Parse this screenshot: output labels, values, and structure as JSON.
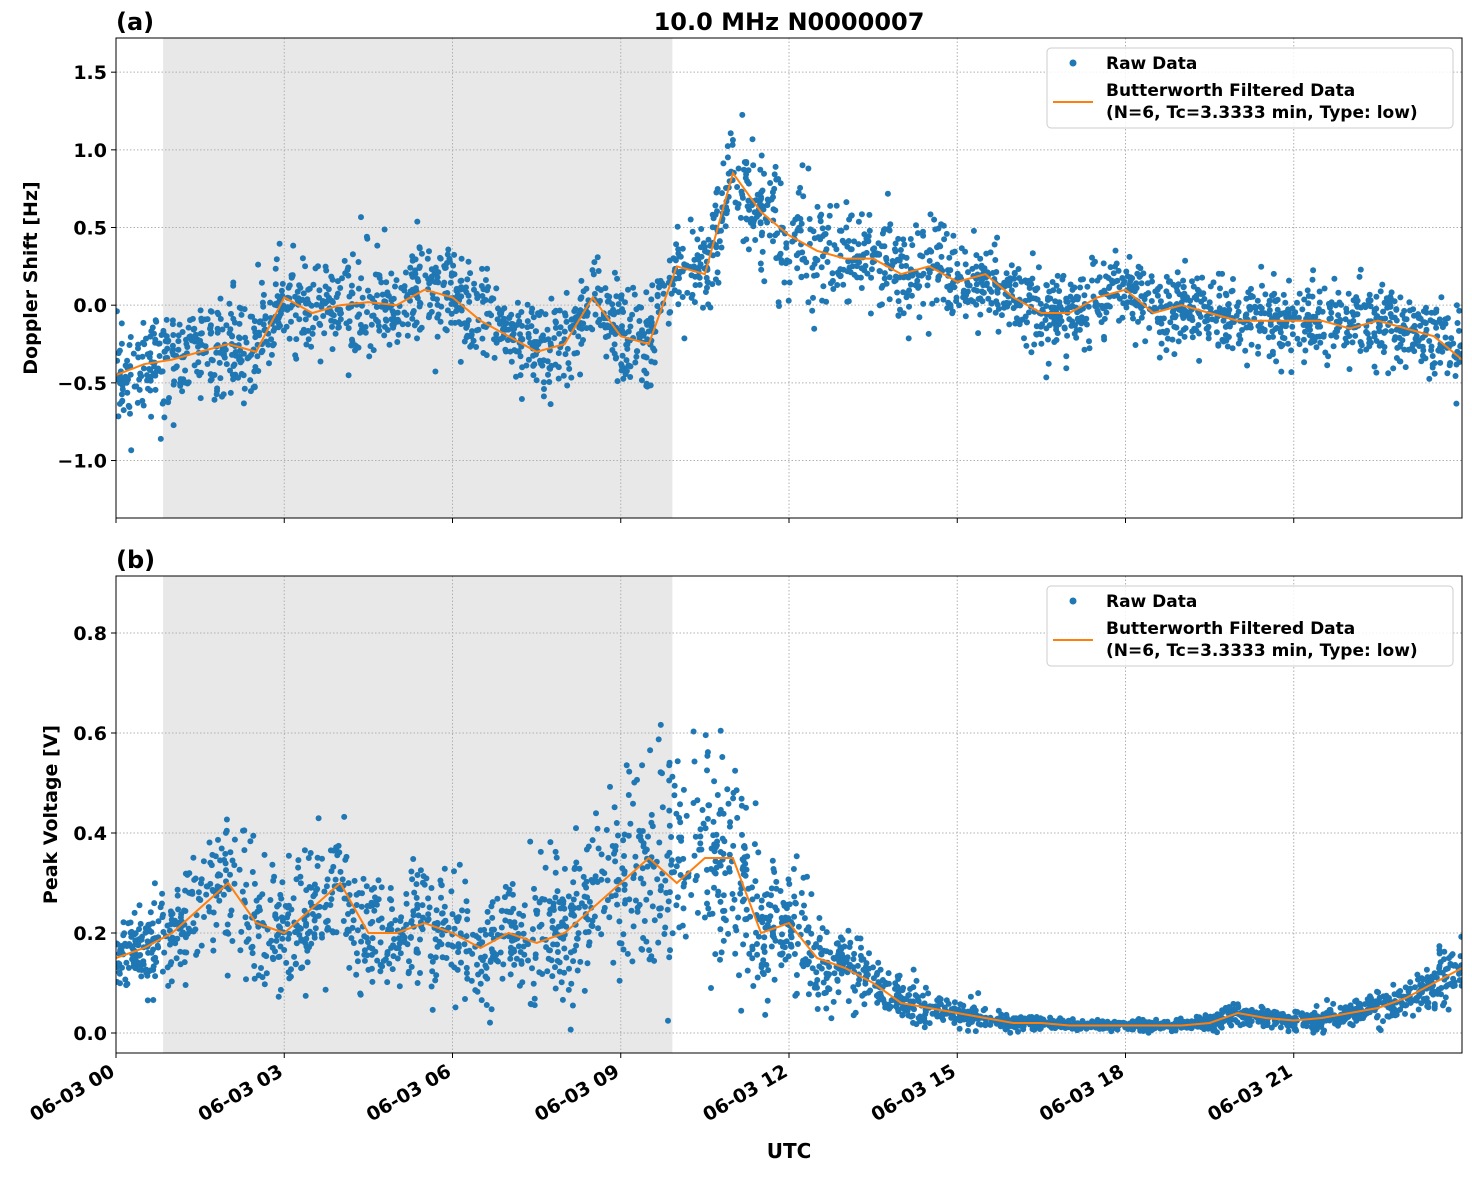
{
  "chart_data": [
    {
      "type": "scatter",
      "panel_label": "(a)",
      "title": "10.0 MHz N0000007",
      "xlabel": "",
      "ylabel": "Doppler Shift [Hz]",
      "xlim_hours": [
        0,
        24
      ],
      "ylim": [
        -1.37,
        1.72
      ],
      "yticks": [
        -1.0,
        -0.5,
        0.0,
        0.5,
        1.0,
        1.5
      ],
      "ytick_labels": [
        "−1.0",
        "−0.5",
        "0.0",
        "0.5",
        "1.0",
        "1.5"
      ],
      "grid": true,
      "legend_position": "top-right",
      "shaded_region_hours": [
        0.84,
        9.92
      ],
      "shaded_color": "#e8e8e8",
      "series": [
        {
          "name": "Raw Data",
          "kind": "scatter",
          "color": "#1f77b4",
          "note_resolution": "hourly envelope half-width around filtered curve",
          "spread": [
            0.3,
            0.3,
            0.35,
            0.35,
            0.35,
            0.35,
            0.3,
            0.3,
            0.3,
            0.3,
            0.3,
            0.35,
            0.4,
            0.3,
            0.3,
            0.25,
            0.25,
            0.25,
            0.25,
            0.25,
            0.25,
            0.25,
            0.25,
            0.25,
            0.3
          ]
        },
        {
          "name": "Butterworth Filtered Data\n(N=6, Tc=3.3333 min, Type: low)",
          "kind": "line",
          "color": "#ff7f0e",
          "x_hours": [
            0,
            0.5,
            1,
            1.5,
            2,
            2.5,
            3,
            3.5,
            4,
            4.5,
            5,
            5.5,
            6,
            6.5,
            7,
            7.5,
            8,
            8.5,
            9,
            9.5,
            10,
            10.5,
            11,
            11.5,
            12,
            12.5,
            13,
            13.5,
            14,
            14.5,
            15,
            15.5,
            16,
            16.5,
            17,
            17.5,
            18,
            18.5,
            19,
            19.5,
            20,
            20.5,
            21,
            21.5,
            22,
            22.5,
            23,
            23.5,
            24
          ],
          "y": [
            -0.45,
            -0.38,
            -0.35,
            -0.3,
            -0.25,
            -0.3,
            0.05,
            -0.05,
            0.0,
            0.02,
            0.0,
            0.1,
            0.05,
            -0.1,
            -0.2,
            -0.3,
            -0.25,
            0.05,
            -0.2,
            -0.25,
            0.25,
            0.2,
            0.85,
            0.6,
            0.45,
            0.35,
            0.3,
            0.3,
            0.2,
            0.25,
            0.15,
            0.2,
            0.05,
            -0.05,
            -0.05,
            0.05,
            0.1,
            -0.05,
            0.0,
            -0.05,
            -0.1,
            -0.1,
            -0.1,
            -0.1,
            -0.15,
            -0.1,
            -0.15,
            -0.2,
            -0.35
          ]
        }
      ]
    },
    {
      "type": "scatter",
      "panel_label": "(b)",
      "title": "",
      "xlabel": "UTC",
      "ylabel": "Peak Voltage [V]",
      "xlim_hours": [
        0,
        24
      ],
      "ylim": [
        -0.04,
        0.914
      ],
      "yticks": [
        0.0,
        0.2,
        0.4,
        0.6,
        0.8
      ],
      "ytick_labels": [
        "0.0",
        "0.2",
        "0.4",
        "0.6",
        "0.8"
      ],
      "xticks_hours": [
        0,
        3,
        6,
        9,
        12,
        15,
        18,
        21
      ],
      "xtick_labels": [
        "06-03 00",
        "06-03 03",
        "06-03 06",
        "06-03 09",
        "06-03 12",
        "06-03 15",
        "06-03 18",
        "06-03 21"
      ],
      "grid": true,
      "legend_position": "top-right",
      "shaded_region_hours": [
        0.84,
        9.92
      ],
      "shaded_color": "#e8e8e8",
      "series": [
        {
          "name": "Raw Data",
          "kind": "scatter",
          "color": "#1f77b4",
          "spread": [
            0.08,
            0.1,
            0.15,
            0.15,
            0.12,
            0.12,
            0.12,
            0.12,
            0.15,
            0.2,
            0.22,
            0.22,
            0.12,
            0.08,
            0.04,
            0.025,
            0.015,
            0.01,
            0.01,
            0.012,
            0.02,
            0.02,
            0.025,
            0.04,
            0.06
          ]
        },
        {
          "name": "Butterworth Filtered Data\n(N=6, Tc=3.3333 min, Type: low)",
          "kind": "line",
          "color": "#ff7f0e",
          "x_hours": [
            0,
            0.5,
            1,
            1.5,
            2,
            2.5,
            3,
            3.5,
            4,
            4.5,
            5,
            5.5,
            6,
            6.5,
            7,
            7.5,
            8,
            8.5,
            9,
            9.5,
            10,
            10.5,
            11,
            11.5,
            12,
            12.5,
            13,
            13.5,
            14,
            14.5,
            15,
            15.5,
            16,
            16.5,
            17,
            17.5,
            18,
            18.5,
            19,
            19.5,
            20,
            20.5,
            21,
            21.5,
            22,
            22.5,
            23,
            23.5,
            24
          ],
          "y": [
            0.15,
            0.17,
            0.2,
            0.25,
            0.3,
            0.22,
            0.2,
            0.25,
            0.3,
            0.2,
            0.2,
            0.22,
            0.2,
            0.17,
            0.2,
            0.18,
            0.2,
            0.25,
            0.3,
            0.35,
            0.3,
            0.35,
            0.35,
            0.2,
            0.22,
            0.15,
            0.13,
            0.1,
            0.06,
            0.05,
            0.04,
            0.03,
            0.02,
            0.02,
            0.015,
            0.015,
            0.015,
            0.015,
            0.015,
            0.02,
            0.04,
            0.03,
            0.025,
            0.03,
            0.04,
            0.05,
            0.07,
            0.1,
            0.13
          ]
        }
      ]
    }
  ],
  "legend": {
    "raw_label": "Raw Data",
    "filtered_line1": "Butterworth Filtered Data",
    "filtered_line2": "(N=6, Tc=3.3333 min, Type: low)"
  }
}
